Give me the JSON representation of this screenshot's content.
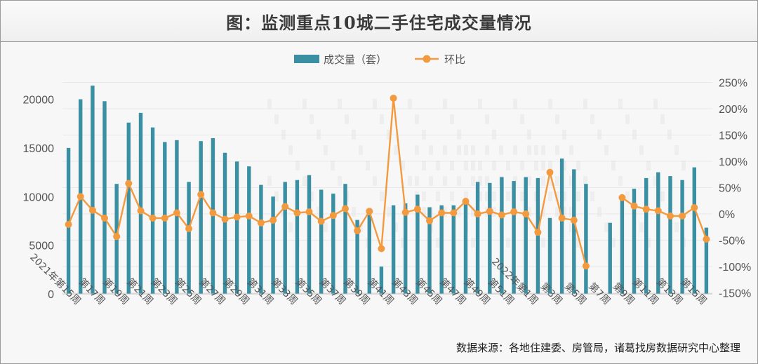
{
  "title": "图：监测重点10城二手住宅成交量情况",
  "source": "数据来源：各地住建委、房管局，诸葛找房数据研究中心整理",
  "colors": {
    "bar": "#3a8fa3",
    "line": "#f39a3f",
    "grid": "#dcdcdc",
    "axis_text": "#555555"
  },
  "chart_data": {
    "type": "bar",
    "legend": {
      "position": "top-center",
      "entries": [
        "成交量（套）",
        "环比"
      ]
    },
    "left_axis": {
      "min": 0,
      "max": 22000,
      "ticks": [
        0,
        5000,
        10000,
        15000,
        20000
      ],
      "tick_labels": [
        "0",
        "5000",
        "10000",
        "15000",
        "20000"
      ]
    },
    "right_axis": {
      "min": -150,
      "max": 250,
      "ticks": [
        -150,
        -100,
        -50,
        0,
        50,
        100,
        150,
        200,
        250
      ],
      "tick_labels": [
        "-150%",
        "-100%",
        "-50%",
        "0%",
        "50%",
        "100%",
        "150%",
        "200%",
        "250%"
      ]
    },
    "x_tick_labels": [
      "2021年第15周",
      "第17周",
      "第19周",
      "第21周",
      "第23周",
      "第25周",
      "第27周",
      "第29周",
      "第31周",
      "第33周",
      "第35周",
      "第37周",
      "第39周",
      "第41周",
      "第43周",
      "第45周",
      "第47周",
      "第49周",
      "第51周",
      "2022年第1周",
      "第3周",
      "第5周",
      "第7周",
      "第9周",
      "第11周",
      "第13周",
      "第15周"
    ],
    "series": [
      {
        "name": "成交量（套）",
        "type": "bar",
        "values": [
          15000,
          20000,
          21400,
          19800,
          11300,
          17600,
          18600,
          17100,
          15600,
          15800,
          11500,
          15700,
          16000,
          14500,
          13600,
          13100,
          11200,
          10000,
          11500,
          11700,
          12200,
          10700,
          10300,
          11300,
          7600,
          8100,
          2800,
          9100,
          9300,
          10200,
          8900,
          9100,
          9100,
          9200,
          11500,
          11400,
          12000,
          11600,
          12000,
          11900,
          7800,
          13900,
          12800,
          11300,
          null,
          7300,
          9700,
          10800,
          11900,
          12500,
          12100,
          11700,
          13000,
          6800
        ]
      },
      {
        "name": "环比",
        "type": "line",
        "values": [
          -20,
          33,
          7,
          -8,
          -43,
          58,
          6,
          -8,
          -8,
          2,
          -28,
          37,
          2,
          -10,
          -6,
          -4,
          -17,
          -12,
          14,
          2,
          4,
          -14,
          -3,
          10,
          -32,
          5,
          -66,
          220,
          3,
          9,
          -13,
          2,
          2,
          24,
          0,
          5,
          -2,
          4,
          0,
          -35,
          79,
          -8,
          -12,
          -99,
          null,
          null,
          31,
          15,
          9,
          6,
          -4,
          -4,
          12,
          -48
        ]
      }
    ]
  }
}
